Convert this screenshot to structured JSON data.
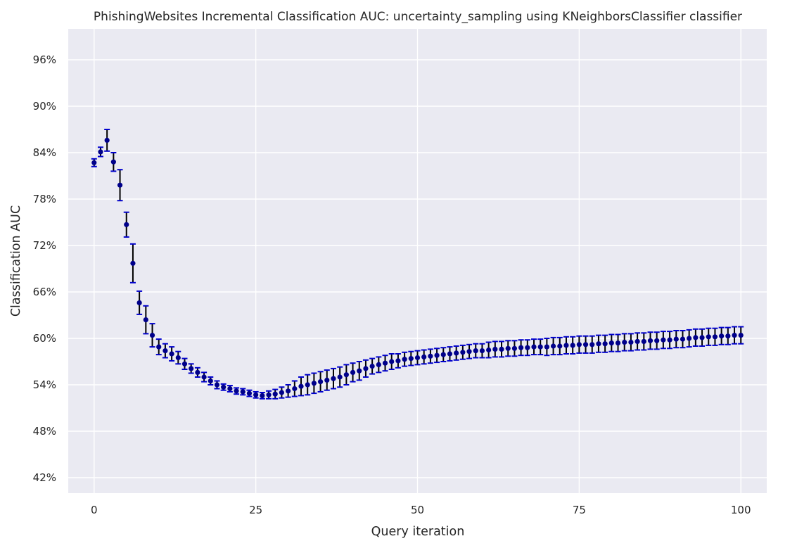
{
  "chart_data": {
    "type": "scatter",
    "title": "PhishingWebsites Incremental Classification AUC: uncertainty_sampling using KNeighborsClassifier classifier",
    "xlabel": "Query iteration",
    "ylabel": "Classification AUC",
    "xlim": [
      -4,
      104
    ],
    "ylim": [
      0.4,
      1.0
    ],
    "x_ticks": [
      0,
      25,
      50,
      75,
      100
    ],
    "x_tick_labels": [
      "0",
      "25",
      "50",
      "75",
      "100"
    ],
    "y_ticks": [
      0.42,
      0.48,
      0.54,
      0.6,
      0.66,
      0.72,
      0.78,
      0.84,
      0.9,
      0.96
    ],
    "y_tick_labels": [
      "42%",
      "48%",
      "54%",
      "60%",
      "66%",
      "72%",
      "78%",
      "84%",
      "90%",
      "96%"
    ],
    "grid": true,
    "marker_color": "#00008b",
    "errorbar_color": "#000000",
    "errorbar_cap_color": "#0000cd",
    "background_color": "#eaeaf2",
    "x": [
      0,
      1,
      2,
      3,
      4,
      5,
      6,
      7,
      8,
      9,
      10,
      11,
      12,
      13,
      14,
      15,
      16,
      17,
      18,
      19,
      20,
      21,
      22,
      23,
      24,
      25,
      26,
      27,
      28,
      29,
      30,
      31,
      32,
      33,
      34,
      35,
      36,
      37,
      38,
      39,
      40,
      41,
      42,
      43,
      44,
      45,
      46,
      47,
      48,
      49,
      50,
      51,
      52,
      53,
      54,
      55,
      56,
      57,
      58,
      59,
      60,
      61,
      62,
      63,
      64,
      65,
      66,
      67,
      68,
      69,
      70,
      71,
      72,
      73,
      74,
      75,
      76,
      77,
      78,
      79,
      80,
      81,
      82,
      83,
      84,
      85,
      86,
      87,
      88,
      89,
      90,
      91,
      92,
      93,
      94,
      95,
      96,
      97,
      98,
      99,
      100
    ],
    "y": [
      0.827,
      0.841,
      0.856,
      0.828,
      0.798,
      0.747,
      0.697,
      0.646,
      0.624,
      0.604,
      0.589,
      0.584,
      0.58,
      0.575,
      0.567,
      0.561,
      0.556,
      0.55,
      0.545,
      0.54,
      0.537,
      0.535,
      0.532,
      0.531,
      0.529,
      0.527,
      0.526,
      0.527,
      0.528,
      0.53,
      0.532,
      0.535,
      0.538,
      0.54,
      0.542,
      0.544,
      0.546,
      0.548,
      0.55,
      0.553,
      0.556,
      0.558,
      0.561,
      0.564,
      0.566,
      0.568,
      0.57,
      0.571,
      0.573,
      0.574,
      0.575,
      0.576,
      0.577,
      0.578,
      0.579,
      0.58,
      0.581,
      0.582,
      0.583,
      0.584,
      0.584,
      0.585,
      0.586,
      0.586,
      0.587,
      0.587,
      0.588,
      0.588,
      0.589,
      0.589,
      0.589,
      0.59,
      0.59,
      0.591,
      0.591,
      0.592,
      0.592,
      0.592,
      0.593,
      0.593,
      0.594,
      0.594,
      0.595,
      0.595,
      0.596,
      0.596,
      0.597,
      0.597,
      0.598,
      0.598,
      0.599,
      0.599,
      0.6,
      0.601,
      0.601,
      0.602,
      0.602,
      0.603,
      0.603,
      0.604,
      0.604
    ],
    "yerr": [
      0.005,
      0.006,
      0.014,
      0.012,
      0.02,
      0.016,
      0.025,
      0.015,
      0.018,
      0.015,
      0.01,
      0.009,
      0.009,
      0.008,
      0.007,
      0.006,
      0.006,
      0.006,
      0.005,
      0.005,
      0.004,
      0.004,
      0.004,
      0.004,
      0.004,
      0.004,
      0.004,
      0.005,
      0.006,
      0.007,
      0.008,
      0.01,
      0.012,
      0.013,
      0.013,
      0.013,
      0.013,
      0.013,
      0.013,
      0.013,
      0.012,
      0.012,
      0.011,
      0.01,
      0.01,
      0.01,
      0.01,
      0.009,
      0.009,
      0.009,
      0.009,
      0.009,
      0.009,
      0.009,
      0.009,
      0.009,
      0.009,
      0.009,
      0.009,
      0.009,
      0.009,
      0.01,
      0.01,
      0.01,
      0.01,
      0.01,
      0.01,
      0.01,
      0.01,
      0.01,
      0.011,
      0.011,
      0.011,
      0.011,
      0.011,
      0.011,
      0.011,
      0.011,
      0.011,
      0.011,
      0.011,
      0.011,
      0.011,
      0.011,
      0.011,
      0.011,
      0.011,
      0.011,
      0.011,
      0.011,
      0.011,
      0.011,
      0.011,
      0.011,
      0.011,
      0.011,
      0.011,
      0.011,
      0.011,
      0.011,
      0.011
    ]
  }
}
